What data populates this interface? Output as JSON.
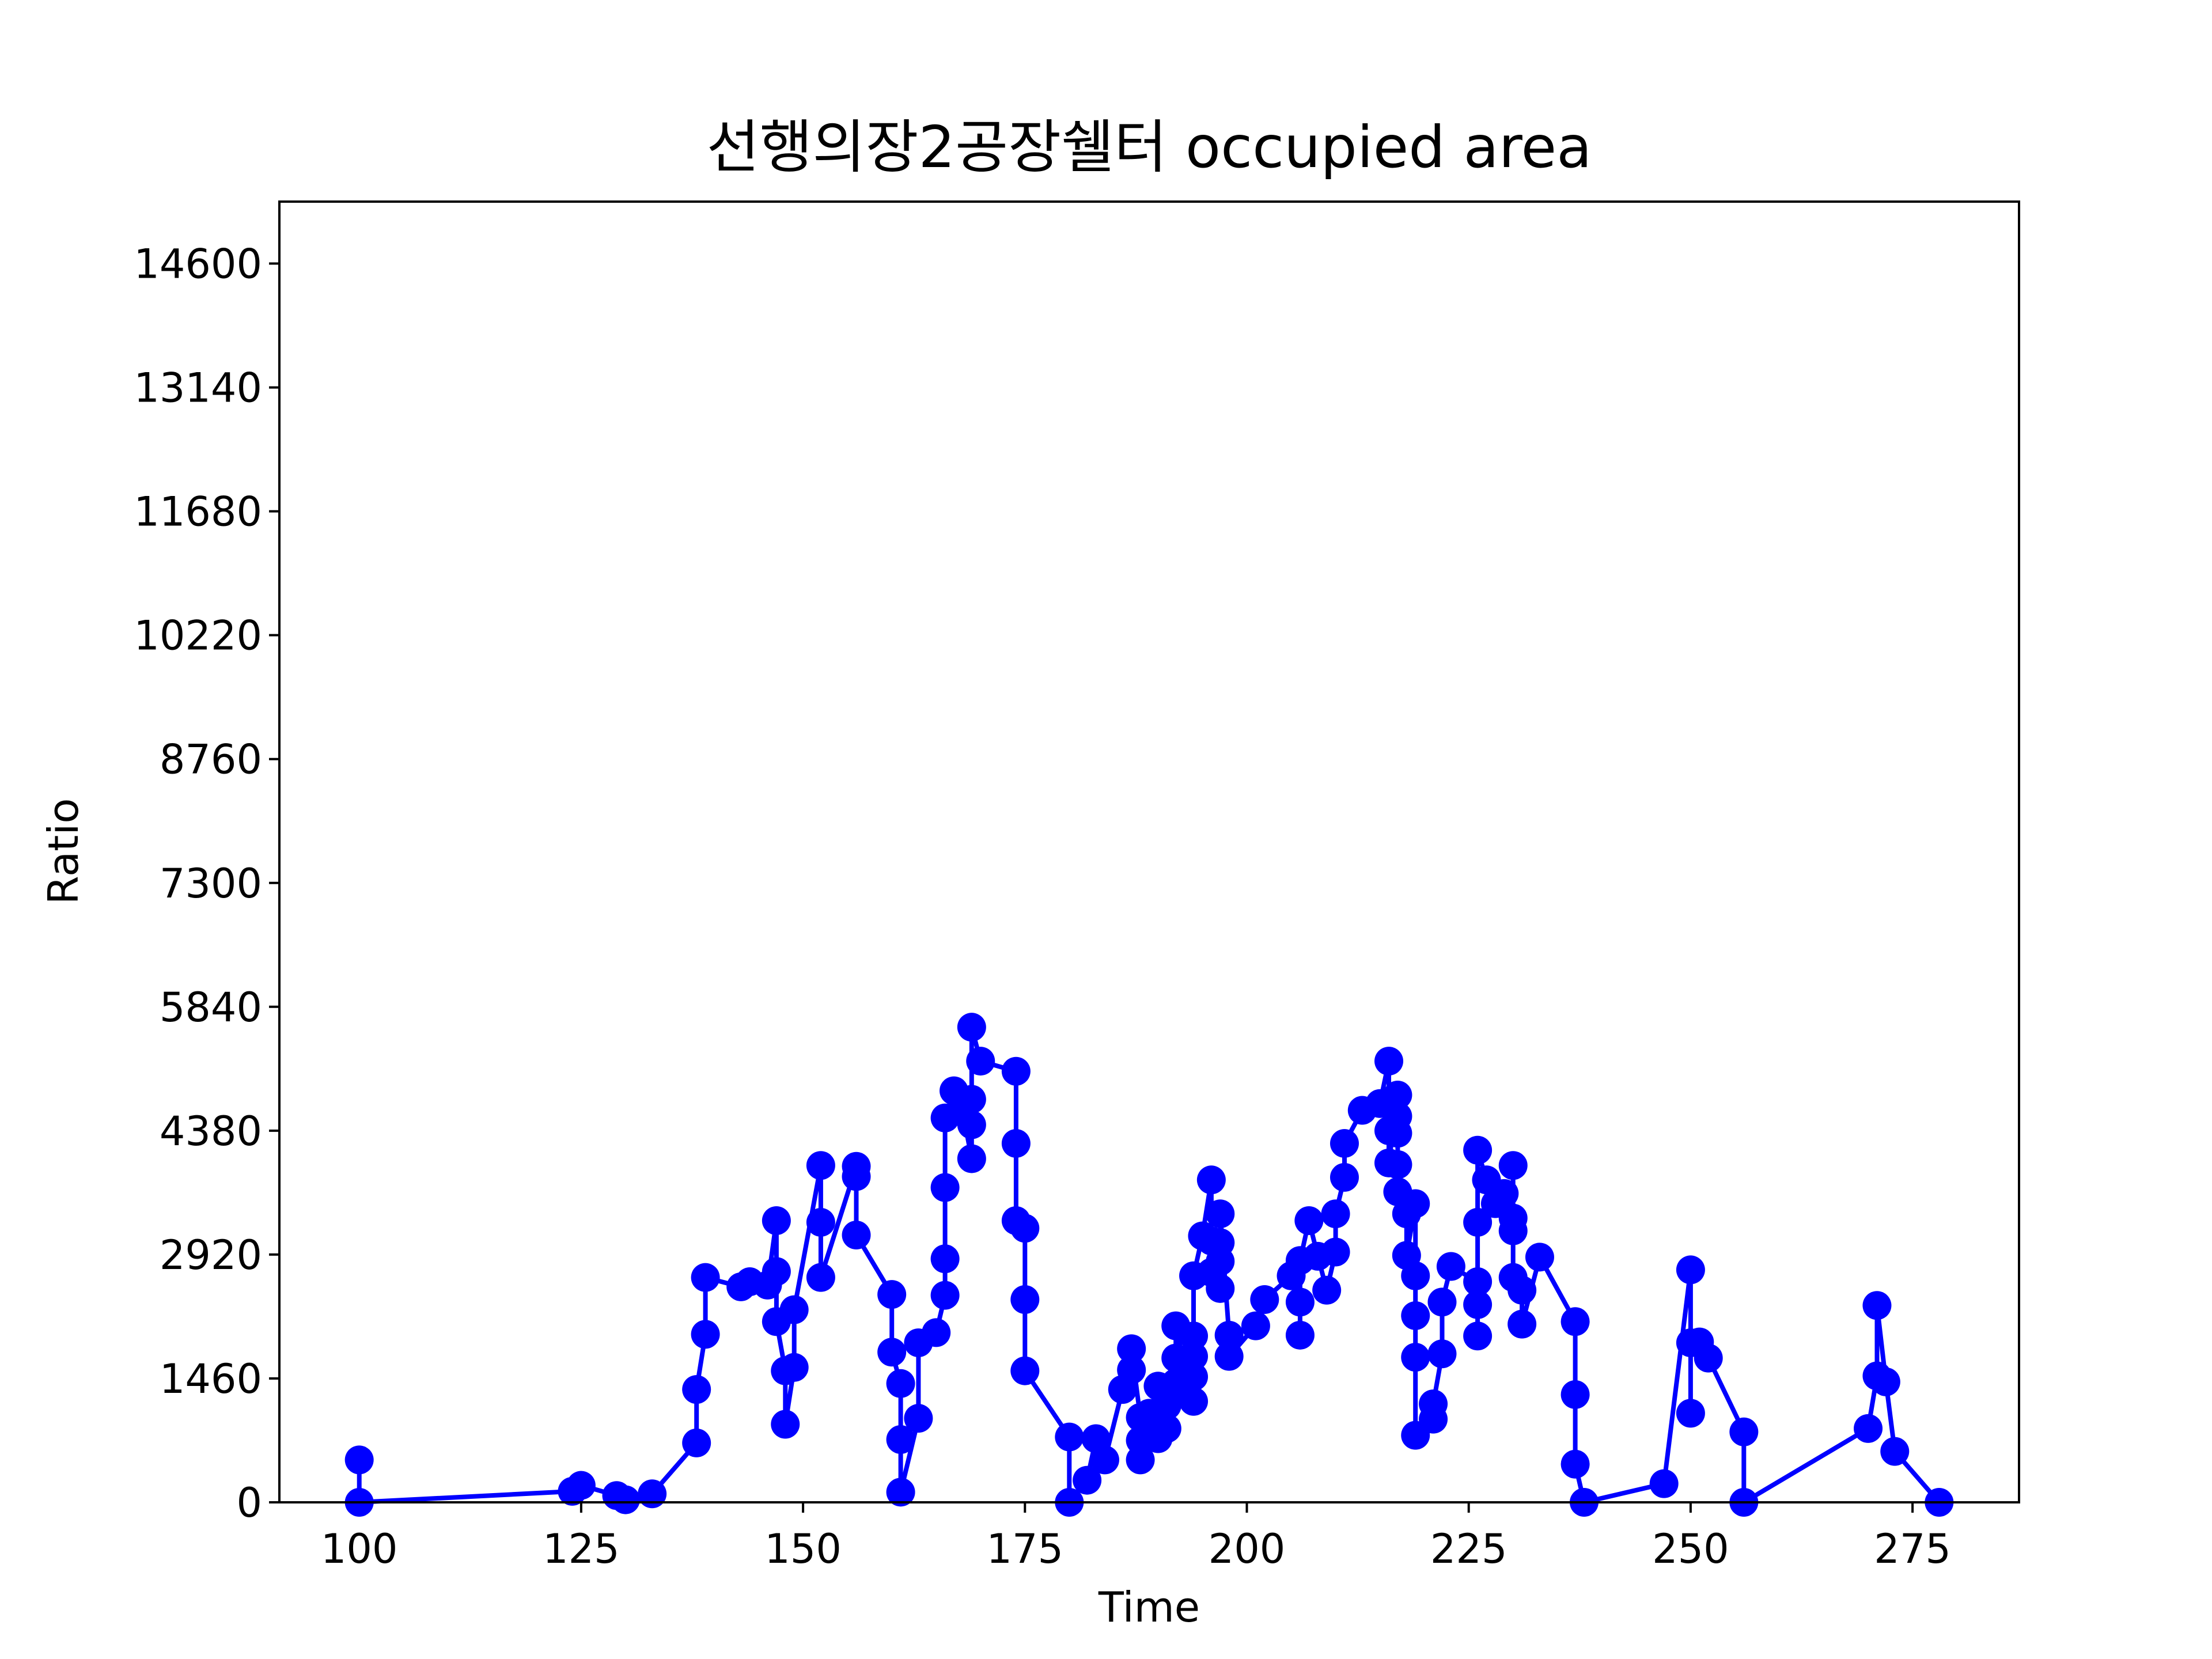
{
  "chart_data": {
    "type": "line",
    "title": "선행의장2공장쉘터 occupied area",
    "xlabel": "Time",
    "ylabel": "Ratio",
    "xlim": [
      91,
      287
    ],
    "ylim": [
      0,
      15330
    ],
    "xticks": [
      100,
      125,
      150,
      175,
      200,
      225,
      250,
      275
    ],
    "yticks": [
      0,
      1460,
      2920,
      4380,
      5840,
      7300,
      8760,
      10220,
      11680,
      13140,
      14600
    ],
    "grid": false,
    "series": [
      {
        "color": "#0000ff",
        "marker": "circle",
        "points": [
          [
            100,
            500
          ],
          [
            100,
            0
          ],
          [
            124,
            130
          ],
          [
            125,
            200
          ],
          [
            129,
            80
          ],
          [
            130,
            30
          ],
          [
            133,
            100
          ],
          [
            138,
            700
          ],
          [
            138,
            1330
          ],
          [
            139,
            1980
          ],
          [
            139,
            2650
          ],
          [
            143,
            2540
          ],
          [
            144,
            2600
          ],
          [
            146,
            2560
          ],
          [
            147,
            3320
          ],
          [
            147,
            2720
          ],
          [
            147,
            2130
          ],
          [
            148,
            1550
          ],
          [
            148,
            920
          ],
          [
            149,
            1590
          ],
          [
            149,
            2270
          ],
          [
            152,
            3970
          ],
          [
            152,
            3300
          ],
          [
            152,
            2650
          ],
          [
            156,
            3960
          ],
          [
            156,
            3840
          ],
          [
            156,
            3150
          ],
          [
            160,
            2450
          ],
          [
            160,
            1770
          ],
          [
            161,
            1400
          ],
          [
            161,
            740
          ],
          [
            161,
            120
          ],
          [
            163,
            990
          ],
          [
            163,
            1880
          ],
          [
            165,
            2000
          ],
          [
            166,
            2440
          ],
          [
            166,
            2870
          ],
          [
            166,
            3710
          ],
          [
            166,
            4530
          ],
          [
            167,
            4850
          ],
          [
            168,
            4600
          ],
          [
            169,
            4050
          ],
          [
            169,
            4450
          ],
          [
            169,
            4750
          ],
          [
            169,
            5600
          ],
          [
            170,
            5200
          ],
          [
            174,
            5080
          ],
          [
            174,
            4230
          ],
          [
            174,
            3320
          ],
          [
            175,
            3230
          ],
          [
            175,
            2390
          ],
          [
            175,
            1550
          ],
          [
            180,
            770
          ],
          [
            180,
            0
          ],
          [
            182,
            260
          ],
          [
            183,
            750
          ],
          [
            184,
            500
          ],
          [
            186,
            1330
          ],
          [
            187,
            1560
          ],
          [
            187,
            1810
          ],
          [
            188,
            1000
          ],
          [
            188,
            730
          ],
          [
            188,
            500
          ],
          [
            189,
            1050
          ],
          [
            190,
            1370
          ],
          [
            190,
            750
          ],
          [
            191,
            870
          ],
          [
            191,
            1140
          ],
          [
            192,
            1410
          ],
          [
            192,
            1700
          ],
          [
            192,
            2080
          ],
          [
            193,
            1590
          ],
          [
            193,
            1320
          ],
          [
            194,
            1190
          ],
          [
            194,
            1480
          ],
          [
            194,
            1720
          ],
          [
            194,
            1960
          ],
          [
            194,
            2670
          ],
          [
            195,
            3140
          ],
          [
            196,
            3800
          ],
          [
            196,
            3080
          ],
          [
            196,
            2710
          ],
          [
            197,
            2520
          ],
          [
            197,
            2840
          ],
          [
            197,
            3060
          ],
          [
            197,
            3400
          ],
          [
            198,
            1970
          ],
          [
            198,
            1720
          ],
          [
            201,
            2080
          ],
          [
            202,
            2390
          ],
          [
            205,
            2670
          ],
          [
            206,
            2360
          ],
          [
            206,
            1970
          ],
          [
            206,
            2850
          ],
          [
            207,
            3320
          ],
          [
            208,
            2900
          ],
          [
            209,
            2500
          ],
          [
            210,
            2950
          ],
          [
            210,
            3400
          ],
          [
            211,
            3830
          ],
          [
            211,
            4230
          ],
          [
            213,
            4620
          ],
          [
            215,
            4700
          ],
          [
            216,
            5200
          ],
          [
            216,
            4380
          ],
          [
            216,
            4000
          ],
          [
            217,
            4800
          ],
          [
            217,
            4550
          ],
          [
            217,
            4350
          ],
          [
            217,
            3980
          ],
          [
            217,
            3660
          ],
          [
            218,
            3400
          ],
          [
            218,
            2910
          ],
          [
            219,
            3520
          ],
          [
            219,
            2670
          ],
          [
            219,
            2200
          ],
          [
            219,
            1710
          ],
          [
            219,
            790
          ],
          [
            221,
            980
          ],
          [
            221,
            1160
          ],
          [
            222,
            1750
          ],
          [
            222,
            2360
          ],
          [
            223,
            2780
          ],
          [
            226,
            2600
          ],
          [
            226,
            2330
          ],
          [
            226,
            1960
          ],
          [
            226,
            3300
          ],
          [
            226,
            4150
          ],
          [
            227,
            3800
          ],
          [
            228,
            3520
          ],
          [
            229,
            3640
          ],
          [
            230,
            3350
          ],
          [
            230,
            3970
          ],
          [
            230,
            3200
          ],
          [
            230,
            2650
          ],
          [
            231,
            2500
          ],
          [
            231,
            2100
          ],
          [
            233,
            2890
          ],
          [
            237,
            2130
          ],
          [
            237,
            1270
          ],
          [
            237,
            450
          ],
          [
            238,
            0
          ],
          [
            247,
            220
          ],
          [
            250,
            2740
          ],
          [
            250,
            1050
          ],
          [
            250,
            1880
          ],
          [
            251,
            1890
          ],
          [
            252,
            1700
          ],
          [
            256,
            830
          ],
          [
            256,
            0
          ],
          [
            270,
            870
          ],
          [
            271,
            1490
          ],
          [
            271,
            2320
          ],
          [
            272,
            1420
          ],
          [
            273,
            600
          ],
          [
            278,
            0
          ]
        ]
      }
    ]
  }
}
